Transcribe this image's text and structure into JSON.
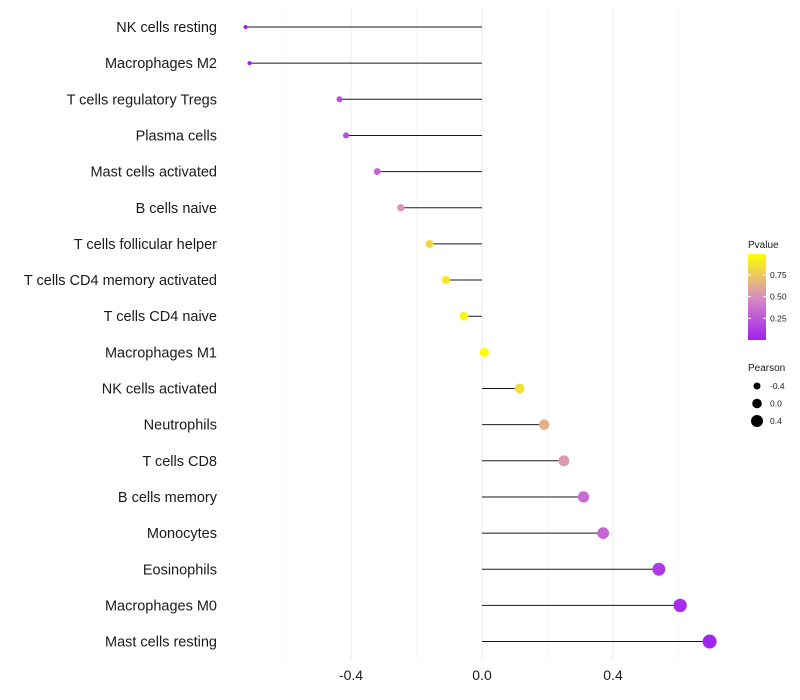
{
  "chart_data": {
    "type": "lollipop",
    "title": "",
    "xlabel": "",
    "ylabel": "",
    "xlim": [
      -0.76,
      0.78
    ],
    "x_ticks": [
      -0.4,
      0.0,
      0.4
    ],
    "x_tick_labels": [
      "-0.4",
      "0.0",
      "0.4"
    ],
    "grid": true,
    "categories": [
      "NK cells resting",
      "Macrophages M2",
      "T cells regulatory  Tregs",
      "Plasma cells",
      "Mast cells activated",
      "B cells naive",
      "T cells follicular helper",
      "T cells CD4 memory activated",
      "T cells CD4 naive",
      "Macrophages M1",
      "NK cells activated",
      "Neutrophils",
      "T cells CD8",
      "B cells memory",
      "Monocytes",
      "Eosinophils",
      "Macrophages M0",
      "Mast cells resting"
    ],
    "pearson": [
      -0.722,
      -0.71,
      -0.435,
      -0.415,
      -0.32,
      -0.248,
      -0.16,
      -0.11,
      -0.055,
      0.007,
      0.115,
      0.19,
      0.25,
      0.31,
      0.37,
      0.54,
      0.605,
      0.695
    ],
    "pvalue": [
      0.0,
      0.0,
      0.22,
      0.22,
      0.32,
      0.52,
      0.82,
      0.88,
      0.96,
      0.99,
      0.86,
      0.65,
      0.55,
      0.35,
      0.32,
      0.12,
      0.06,
      0.02
    ],
    "legend_color": {
      "title": "Pvalue",
      "ticks": [
        0.25,
        0.5,
        0.75
      ],
      "tick_labels": [
        "0.25",
        "0.50",
        "0.75"
      ],
      "low_color": "#a020f0",
      "mid_color": "#d88ec0",
      "high_color": "#ffff00",
      "placement": "right"
    },
    "legend_size": {
      "title": "Pearson",
      "values": [
        -0.4,
        0.0,
        0.4
      ],
      "labels": [
        "-0.4",
        "0.0",
        "0.4"
      ],
      "placement": "right"
    },
    "colors": {
      "segment": "#1a1a1a",
      "grid_major": "#ebebeb",
      "grid_minor": "#f5f5f5"
    }
  }
}
